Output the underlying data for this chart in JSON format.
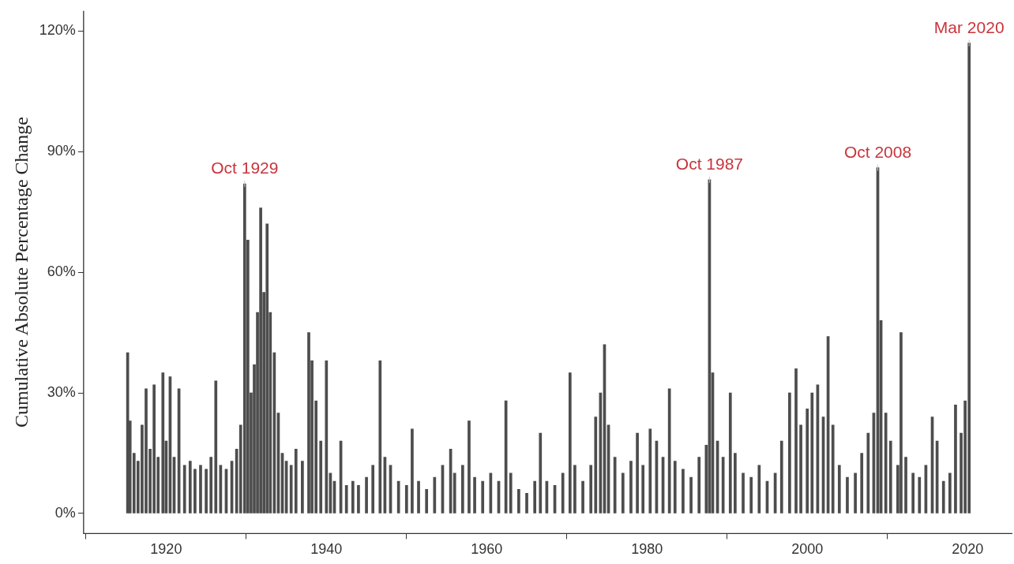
{
  "chart_data": {
    "type": "bar",
    "ylabel": "Cumulative Absolute Percentage Change",
    "color": "#4d4d4d",
    "x": [
      1915.2,
      1915.5,
      1916.0,
      1916.5,
      1917.0,
      1917.5,
      1918.0,
      1918.5,
      1919.0,
      1919.6,
      1920.0,
      1920.5,
      1921.0,
      1921.6,
      1922.3,
      1923.0,
      1923.6,
      1924.3,
      1925.0,
      1925.6,
      1926.2,
      1926.8,
      1927.5,
      1928.2,
      1928.8,
      1929.3,
      1929.8,
      1930.2,
      1930.6,
      1931.0,
      1931.4,
      1931.8,
      1932.2,
      1932.6,
      1933.0,
      1933.5,
      1934.0,
      1934.5,
      1935.0,
      1935.6,
      1936.2,
      1937.0,
      1937.8,
      1938.2,
      1938.7,
      1939.3,
      1940.0,
      1940.5,
      1941.0,
      1941.8,
      1942.5,
      1943.3,
      1944.0,
      1945.0,
      1945.8,
      1946.7,
      1947.3,
      1948.0,
      1949.0,
      1950.0,
      1950.7,
      1951.5,
      1952.5,
      1953.5,
      1954.5,
      1955.5,
      1956.0,
      1957.0,
      1957.8,
      1958.5,
      1959.5,
      1960.5,
      1961.5,
      1962.4,
      1963.0,
      1964.0,
      1965.0,
      1966.0,
      1966.7,
      1967.5,
      1968.5,
      1969.5,
      1970.4,
      1971.0,
      1972.0,
      1973.0,
      1973.6,
      1974.2,
      1974.7,
      1975.2,
      1976.0,
      1977.0,
      1978.0,
      1978.8,
      1979.5,
      1980.4,
      1981.2,
      1982.0,
      1982.8,
      1983.5,
      1984.5,
      1985.5,
      1986.5,
      1987.4,
      1987.8,
      1988.2,
      1988.8,
      1989.5,
      1990.4,
      1991.0,
      1992.0,
      1993.0,
      1994.0,
      1995.0,
      1996.0,
      1996.8,
      1997.8,
      1998.6,
      1999.2,
      2000.0,
      2000.6,
      2001.3,
      2002.0,
      2002.6,
      2003.2,
      2004.0,
      2005.0,
      2006.0,
      2006.8,
      2007.6,
      2008.3,
      2008.8,
      2009.2,
      2009.8,
      2010.4,
      2011.3,
      2011.7,
      2012.3,
      2013.2,
      2014.0,
      2014.8,
      2015.6,
      2016.2,
      2017.0,
      2017.8,
      2018.5,
      2019.2,
      2019.7,
      2020.2
    ],
    "values": [
      40,
      23,
      15,
      13,
      22,
      31,
      16,
      32,
      14,
      35,
      18,
      34,
      14,
      31,
      12,
      13,
      11,
      12,
      11,
      14,
      33,
      12,
      11,
      13,
      16,
      22,
      82,
      68,
      30,
      37,
      50,
      76,
      55,
      72,
      50,
      40,
      25,
      15,
      13,
      12,
      16,
      13,
      45,
      38,
      28,
      18,
      38,
      10,
      8,
      18,
      7,
      8,
      7,
      9,
      12,
      38,
      14,
      12,
      8,
      7,
      21,
      8,
      6,
      9,
      12,
      16,
      10,
      12,
      23,
      9,
      8,
      10,
      8,
      28,
      10,
      6,
      5,
      8,
      20,
      8,
      7,
      10,
      35,
      12,
      8,
      12,
      24,
      30,
      42,
      22,
      14,
      10,
      13,
      20,
      12,
      21,
      18,
      14,
      31,
      13,
      11,
      9,
      14,
      17,
      83,
      35,
      18,
      14,
      30,
      15,
      10,
      9,
      12,
      8,
      10,
      18,
      30,
      36,
      22,
      26,
      30,
      32,
      24,
      44,
      22,
      12,
      9,
      10,
      15,
      20,
      25,
      86,
      48,
      25,
      18,
      12,
      45,
      14,
      10,
      9,
      12,
      24,
      18,
      8,
      10,
      27,
      20,
      28,
      117
    ],
    "xlim": [
      1909.7,
      2025.6
    ],
    "xticks": [
      1920,
      1940,
      1960,
      1980,
      2000,
      2020
    ],
    "ylim": [
      -5,
      125
    ],
    "yticks": [
      {
        "value": 0,
        "label": "0%"
      },
      {
        "value": 30,
        "label": "30%"
      },
      {
        "value": 60,
        "label": "60%"
      },
      {
        "value": 90,
        "label": "90%"
      },
      {
        "value": 120,
        "label": "120%"
      }
    ],
    "grid": false,
    "legend": false,
    "annotations": [
      {
        "text": "Oct 1929",
        "x": 1929.8,
        "y": 82
      },
      {
        "text": "Oct 1987",
        "x": 1987.8,
        "y": 83
      },
      {
        "text": "Oct 2008",
        "x": 2008.8,
        "y": 86
      },
      {
        "text": "Mar 2020",
        "x": 2020.2,
        "y": 117
      }
    ]
  }
}
